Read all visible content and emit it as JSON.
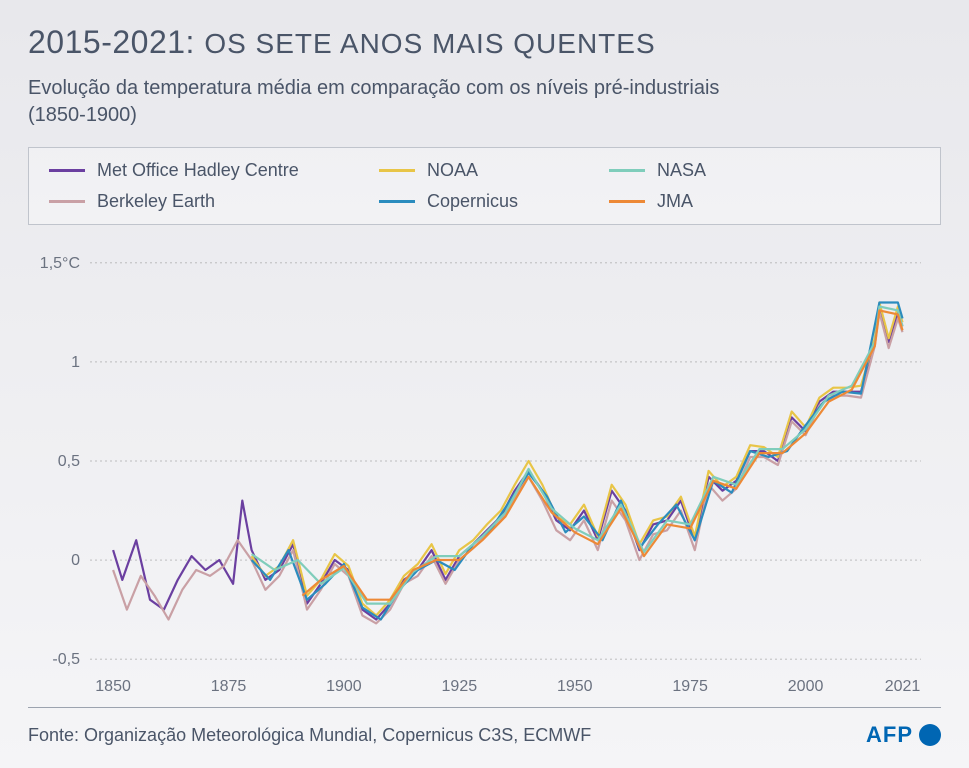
{
  "title_year": "2015-2021:",
  "title_rest": "OS SETE ANOS MAIS QUENTES",
  "subtitle": "Evolução da temperatura média em comparação com os níveis pré-industriais (1850-1900)",
  "legend": [
    {
      "label": "Met Office Hadley Centre",
      "color": "#6b3fa0"
    },
    {
      "label": "NOAA",
      "color": "#e8c547"
    },
    {
      "label": "NASA",
      "color": "#7fcdbb"
    },
    {
      "label": "Berkeley Earth",
      "color": "#c9a0a5"
    },
    {
      "label": "Copernicus",
      "color": "#2b8cbe"
    },
    {
      "label": "JMA",
      "color": "#ed8936"
    }
  ],
  "chart": {
    "type": "line",
    "background_color": "transparent",
    "grid_color": "#888888",
    "grid_dash": "2,3",
    "line_width": 2.2,
    "xlim": [
      1845,
      2025
    ],
    "ylim": [
      -0.55,
      1.55
    ],
    "xticks": [
      1850,
      1875,
      1900,
      1925,
      1950,
      1975,
      2000,
      2021
    ],
    "yticks": [
      {
        "v": -0.5,
        "label": "-0,5"
      },
      {
        "v": 0,
        "label": "0"
      },
      {
        "v": 0.5,
        "label": "0,5"
      },
      {
        "v": 1,
        "label": "1"
      },
      {
        "v": 1.5,
        "label": "1,5°C"
      }
    ],
    "axis_fontsize": 16,
    "axis_color": "#6b7280",
    "series": [
      {
        "name": "Met Office Hadley Centre",
        "color": "#6b3fa0",
        "years": [
          1850,
          1852,
          1855,
          1858,
          1861,
          1864,
          1867,
          1870,
          1873,
          1876,
          1878,
          1880,
          1883,
          1886,
          1889,
          1892,
          1895,
          1898,
          1901,
          1904,
          1907,
          1910,
          1913,
          1916,
          1919,
          1922,
          1925,
          1928,
          1931,
          1934,
          1937,
          1940,
          1943,
          1946,
          1949,
          1952,
          1955,
          1958,
          1961,
          1964,
          1967,
          1970,
          1973,
          1976,
          1979,
          1982,
          1985,
          1988,
          1991,
          1994,
          1997,
          2000,
          2003,
          2006,
          2009,
          2012,
          2015,
          2016,
          2018,
          2020,
          2021
        ],
        "vals": [
          0.05,
          -0.1,
          0.1,
          -0.2,
          -0.25,
          -0.1,
          0.02,
          -0.05,
          0.0,
          -0.12,
          0.3,
          0.05,
          -0.1,
          -0.05,
          0.08,
          -0.22,
          -0.12,
          0.0,
          -0.05,
          -0.25,
          -0.3,
          -0.22,
          -0.1,
          -0.05,
          0.05,
          -0.1,
          0.02,
          0.08,
          0.15,
          0.22,
          0.35,
          0.45,
          0.35,
          0.2,
          0.15,
          0.25,
          0.1,
          0.35,
          0.25,
          0.05,
          0.18,
          0.2,
          0.3,
          0.1,
          0.42,
          0.35,
          0.4,
          0.55,
          0.55,
          0.5,
          0.72,
          0.65,
          0.8,
          0.85,
          0.85,
          0.85,
          1.1,
          1.28,
          1.1,
          1.25,
          1.18
        ]
      },
      {
        "name": "Berkeley Earth",
        "color": "#c9a0a5",
        "years": [
          1850,
          1853,
          1856,
          1859,
          1862,
          1865,
          1868,
          1871,
          1874,
          1877,
          1880,
          1883,
          1886,
          1889,
          1892,
          1895,
          1898,
          1901,
          1904,
          1907,
          1910,
          1913,
          1916,
          1919,
          1922,
          1925,
          1928,
          1931,
          1934,
          1937,
          1940,
          1943,
          1946,
          1949,
          1952,
          1955,
          1958,
          1961,
          1964,
          1967,
          1970,
          1973,
          1976,
          1979,
          1982,
          1985,
          1988,
          1991,
          1994,
          1997,
          2000,
          2003,
          2006,
          2009,
          2012,
          2015,
          2016,
          2018,
          2020,
          2021
        ],
        "vals": [
          -0.05,
          -0.25,
          -0.08,
          -0.18,
          -0.3,
          -0.15,
          -0.05,
          -0.08,
          -0.03,
          0.1,
          0.0,
          -0.15,
          -0.08,
          0.05,
          -0.25,
          -0.15,
          -0.02,
          -0.08,
          -0.28,
          -0.32,
          -0.25,
          -0.12,
          -0.08,
          0.02,
          -0.12,
          0.0,
          0.06,
          0.13,
          0.2,
          0.32,
          0.42,
          0.3,
          0.15,
          0.1,
          0.2,
          0.05,
          0.3,
          0.2,
          0.0,
          0.13,
          0.15,
          0.25,
          0.05,
          0.38,
          0.3,
          0.36,
          0.52,
          0.52,
          0.48,
          0.7,
          0.63,
          0.78,
          0.83,
          0.83,
          0.82,
          1.08,
          1.25,
          1.07,
          1.22,
          1.15
        ]
      },
      {
        "name": "NOAA",
        "color": "#e8c547",
        "years": [
          1880,
          1883,
          1886,
          1889,
          1892,
          1895,
          1898,
          1901,
          1904,
          1907,
          1910,
          1913,
          1916,
          1919,
          1922,
          1925,
          1928,
          1931,
          1934,
          1937,
          1940,
          1943,
          1946,
          1949,
          1952,
          1955,
          1958,
          1961,
          1964,
          1967,
          1970,
          1973,
          1976,
          1979,
          1982,
          1985,
          1988,
          1991,
          1994,
          1997,
          2000,
          2003,
          2006,
          2009,
          2012,
          2015,
          2016,
          2018,
          2020,
          2021
        ],
        "vals": [
          0.02,
          -0.08,
          -0.03,
          0.1,
          -0.18,
          -0.1,
          0.03,
          -0.03,
          -0.22,
          -0.28,
          -0.2,
          -0.08,
          -0.02,
          0.08,
          -0.07,
          0.05,
          0.1,
          0.18,
          0.25,
          0.38,
          0.5,
          0.38,
          0.22,
          0.18,
          0.28,
          0.12,
          0.38,
          0.28,
          0.08,
          0.2,
          0.22,
          0.32,
          0.12,
          0.45,
          0.37,
          0.42,
          0.58,
          0.57,
          0.52,
          0.75,
          0.67,
          0.82,
          0.87,
          0.87,
          0.88,
          1.12,
          1.3,
          1.12,
          1.28,
          1.2
        ]
      },
      {
        "name": "Copernicus",
        "color": "#2b8cbe",
        "years": [
          1880,
          1884,
          1888,
          1892,
          1896,
          1900,
          1904,
          1908,
          1912,
          1916,
          1920,
          1924,
          1928,
          1932,
          1936,
          1940,
          1944,
          1948,
          1952,
          1956,
          1960,
          1964,
          1968,
          1972,
          1976,
          1980,
          1984,
          1988,
          1992,
          1996,
          2000,
          2004,
          2008,
          2012,
          2016,
          2020,
          2021
        ],
        "vals": [
          0.0,
          -0.1,
          0.05,
          -0.2,
          -0.12,
          -0.02,
          -0.24,
          -0.3,
          -0.15,
          -0.05,
          0.0,
          -0.05,
          0.08,
          0.16,
          0.3,
          0.44,
          0.32,
          0.14,
          0.22,
          0.1,
          0.3,
          0.06,
          0.18,
          0.28,
          0.1,
          0.4,
          0.34,
          0.55,
          0.52,
          0.55,
          0.68,
          0.8,
          0.85,
          0.84,
          1.3,
          1.3,
          1.22
        ]
      },
      {
        "name": "NASA",
        "color": "#7fcdbb",
        "years": [
          1880,
          1885,
          1890,
          1895,
          1900,
          1905,
          1910,
          1915,
          1920,
          1925,
          1930,
          1935,
          1940,
          1945,
          1950,
          1955,
          1960,
          1965,
          1970,
          1975,
          1980,
          1985,
          1990,
          1995,
          2000,
          2005,
          2010,
          2015,
          2016,
          2020,
          2021
        ],
        "vals": [
          0.03,
          -0.05,
          0.0,
          -0.12,
          -0.04,
          -0.22,
          -0.22,
          -0.06,
          0.02,
          0.02,
          0.12,
          0.24,
          0.46,
          0.26,
          0.16,
          0.1,
          0.28,
          0.04,
          0.2,
          0.18,
          0.42,
          0.38,
          0.56,
          0.56,
          0.66,
          0.83,
          0.88,
          1.1,
          1.28,
          1.26,
          1.18
        ]
      },
      {
        "name": "JMA",
        "color": "#ed8936",
        "years": [
          1891,
          1895,
          1900,
          1905,
          1910,
          1915,
          1920,
          1925,
          1930,
          1935,
          1940,
          1945,
          1950,
          1955,
          1960,
          1965,
          1970,
          1975,
          1980,
          1985,
          1990,
          1995,
          2000,
          2005,
          2010,
          2015,
          2016,
          2020,
          2021
        ],
        "vals": [
          -0.18,
          -0.1,
          -0.03,
          -0.2,
          -0.2,
          -0.05,
          0.0,
          0.0,
          0.1,
          0.22,
          0.42,
          0.24,
          0.14,
          0.08,
          0.26,
          0.02,
          0.18,
          0.16,
          0.4,
          0.36,
          0.54,
          0.54,
          0.64,
          0.8,
          0.86,
          1.08,
          1.26,
          1.24,
          1.16
        ]
      }
    ]
  },
  "source": "Fonte: Organização Meteorológica Mundial, Copernicus C3S, ECMWF",
  "logo": {
    "text": "AFP",
    "color": "#0066b3"
  }
}
